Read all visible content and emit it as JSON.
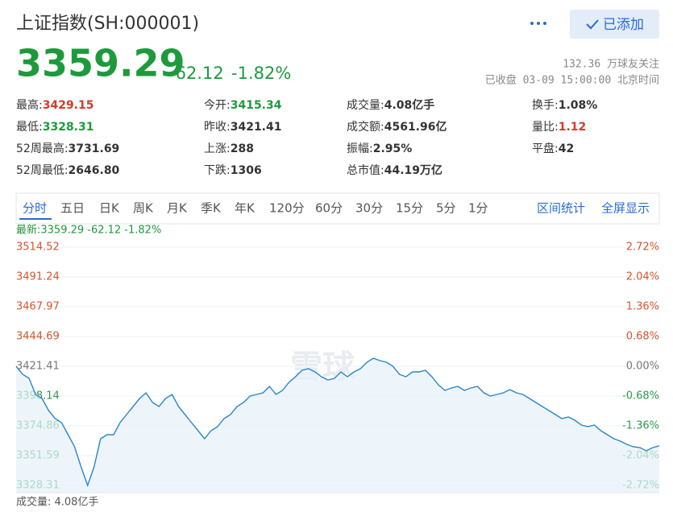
{
  "header": {
    "title": "上证指数(SH:000001)",
    "button": "已添加",
    "price": "3359.29",
    "change": "-62.12",
    "change_percent": "-1.82%",
    "followers": "132.36 万球友关注",
    "status": "已收盘 03-09 15:00:00 北京时间"
  },
  "stats": {
    "rows": [
      [
        {
          "label": "最高:",
          "value": "3429.15",
          "color": "#d6392a"
        },
        {
          "label": "今开:",
          "value": "3415.34",
          "color": "#1d9a3c"
        },
        {
          "label": "成交量:",
          "value": "4.08亿手"
        },
        {
          "label": "换手:",
          "value": "1.08%"
        }
      ],
      [
        {
          "label": "最低:",
          "value": "3328.31",
          "color": "#1d9a3c"
        },
        {
          "label": "昨收:",
          "value": "3421.41"
        },
        {
          "label": "成交额:",
          "value": "4561.96亿"
        },
        {
          "label": "量比:",
          "value": "1.12",
          "color": "#d6392a"
        }
      ],
      [
        {
          "label": "52周最高:",
          "value": "3731.69"
        },
        {
          "label": "上涨:",
          "value": "288"
        },
        {
          "label": "振幅:",
          "value": "2.95%"
        },
        {
          "label": "平盘:",
          "value": "42"
        }
      ],
      [
        {
          "label": "52周最低:",
          "value": "2646.80"
        },
        {
          "label": "下跌:",
          "value": "1306"
        },
        {
          "label": "总市值:",
          "value": "44.19万亿"
        }
      ]
    ]
  },
  "tabs": {
    "items": [
      "分时",
      "五日",
      "日K",
      "周K",
      "月K",
      "季K",
      "年K",
      "120分",
      "60分",
      "30分",
      "15分",
      "5分",
      "1分"
    ],
    "active": 0,
    "links": [
      "区间统计",
      "全屏显示"
    ]
  },
  "latest": "最新:3359.29 -62.12 -1.82%",
  "chart_data": {
    "type": "line",
    "watermark": "雪球",
    "color": "#2b86c8",
    "fill_color": "#e6f1fa",
    "grid": true,
    "values": [
      3421.41,
      3415.12,
      3411.97,
      3399.39,
      3396.25,
      3386.81,
      3380.52,
      3377.37,
      3367.94,
      3358.5,
      3342.77,
      3328.31,
      3342.77,
      3364.79,
      3367.94,
      3367.94,
      3377.37,
      3383.66,
      3389.95,
      3396.25,
      3400.65,
      3393.1,
      3389.95,
      3396.25,
      3399.39,
      3389.95,
      3383.66,
      3377.37,
      3371.08,
      3364.79,
      3371.08,
      3374.23,
      3380.52,
      3383.66,
      3389.95,
      3393.1,
      3398.13,
      3399.39,
      3400.65,
      3405.68,
      3399.39,
      3402.54,
      3408.83,
      3413.23,
      3418.26,
      3419.52,
      3417.01,
      3413.23,
      3410.71,
      3411.97,
      3417.01,
      3413.23,
      3417.01,
      3419.52,
      3424.55,
      3427.7,
      3425.81,
      3424.55,
      3421.41,
      3415.12,
      3413.23,
      3417.01,
      3417.01,
      3418.26,
      3413.23,
      3406.94,
      3402.54,
      3404.42,
      3405.68,
      3402.54,
      3404.42,
      3405.68,
      3400.65,
      3398.13,
      3399.39,
      3400.65,
      3403.17,
      3400.65,
      3399.39,
      3396.25,
      3393.1,
      3389.95,
      3386.81,
      3383.66,
      3380.52,
      3381.78,
      3379.26,
      3375.49,
      3374.23,
      3375.49,
      3371.08,
      3367.94,
      3364.79,
      3362.9,
      3360.39,
      3358.5,
      3357.87,
      3355.35,
      3357.87,
      3359.29
    ],
    "ylim": [
      3328.31,
      3514.52
    ],
    "yticks": [
      3514.52,
      3491.24,
      3467.97,
      3444.69,
      3421.41,
      3398.14,
      3374.86,
      3351.59,
      3328.31
    ],
    "y2lim": [
      -2.72,
      2.72
    ],
    "y2ticks": [
      {
        "value": 2.72,
        "label": "2.72%"
      },
      {
        "value": 2.04,
        "label": "2.04%"
      },
      {
        "value": 1.36,
        "label": "1.36%"
      },
      {
        "value": 0.68,
        "label": "0.68%"
      },
      {
        "value": 0,
        "label": "0.00%"
      },
      {
        "value": -0.68,
        "label": "-0.68%"
      },
      {
        "value": -1.36,
        "label": "-1.36%"
      },
      {
        "value": -2.04,
        "label": "-2.04%"
      },
      {
        "value": -2.72,
        "label": "-2.72%"
      }
    ]
  },
  "footer": {
    "volume": "成交量: 4.08亿手"
  }
}
